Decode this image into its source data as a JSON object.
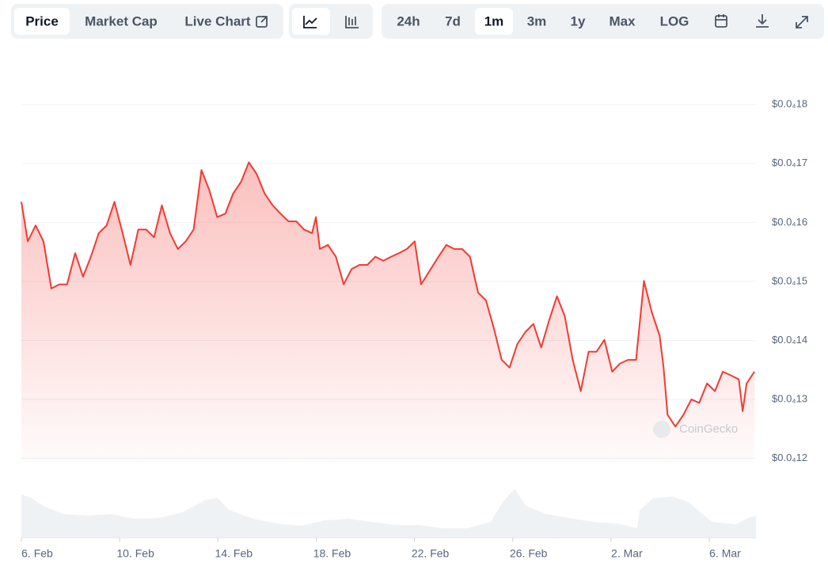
{
  "toolbar": {
    "tabs": [
      "Price",
      "Market Cap",
      "Live Chart"
    ],
    "ranges": [
      "24h",
      "7d",
      "1m",
      "3m",
      "1y",
      "Max",
      "LOG"
    ]
  },
  "chart_data": {
    "type": "line",
    "watermark": "CoinGecko",
    "color": "#f23a33",
    "grid": true,
    "xlim": [
      0,
      29.9
    ],
    "xticks": [
      {
        "value": 0,
        "label": "6. Feb"
      },
      {
        "value": 4,
        "label": "10. Feb"
      },
      {
        "value": 8,
        "label": "14. Feb"
      },
      {
        "value": 12,
        "label": "18. Feb"
      },
      {
        "value": 16,
        "label": "22. Feb"
      },
      {
        "value": 20,
        "label": "26. Feb"
      },
      {
        "value": 24,
        "label": "2. Mar"
      },
      {
        "value": 28,
        "label": "6. Mar"
      }
    ],
    "ylim": [
      1.17e-05,
      1.87e-05
    ],
    "yticks": [
      {
        "value": 1.2e-05,
        "label": "$0.0₄12"
      },
      {
        "value": 1.3e-05,
        "label": "$0.0₄13"
      },
      {
        "value": 1.4e-05,
        "label": "$0.0₄14"
      },
      {
        "value": 1.5e-05,
        "label": "$0.0₄15"
      },
      {
        "value": 1.6e-05,
        "label": "$0.0₄16"
      },
      {
        "value": 1.7e-05,
        "label": "$0.0₄17"
      },
      {
        "value": 1.8e-05,
        "label": "$0.0₄18"
      }
    ],
    "x": [
      0,
      0.26,
      0.58,
      0.9,
      1.22,
      1.54,
      1.86,
      2.19,
      2.51,
      2.83,
      3.15,
      3.47,
      3.79,
      4.12,
      4.44,
      4.76,
      5.08,
      5.4,
      5.72,
      6.05,
      6.37,
      6.69,
      7.01,
      7.33,
      7.65,
      7.97,
      8.3,
      8.62,
      8.94,
      9.26,
      9.58,
      9.9,
      10.23,
      10.55,
      10.87,
      11.19,
      11.51,
      11.83,
      11.99,
      12.15,
      12.48,
      12.8,
      13.12,
      13.44,
      13.76,
      14.08,
      14.41,
      14.73,
      15.05,
      15.37,
      15.69,
      16.01,
      16.27,
      16.66,
      16.98,
      17.3,
      17.62,
      17.94,
      18.26,
      18.59,
      18.91,
      19.23,
      19.55,
      19.87,
      20.19,
      20.51,
      20.84,
      21.16,
      21.48,
      21.8,
      22.12,
      22.44,
      22.77,
      23.09,
      23.41,
      23.73,
      24.05,
      24.37,
      24.69,
      25.02,
      25.34,
      25.66,
      25.98,
      26.14,
      26.3,
      26.62,
      26.95,
      27.27,
      27.59,
      27.91,
      28.23,
      28.55,
      28.87,
      29.2,
      29.36,
      29.52,
      29.84
    ],
    "values": [
      1.635e-05,
      1.568e-05,
      1.595e-05,
      1.568e-05,
      1.488e-05,
      1.495e-05,
      1.495e-05,
      1.548e-05,
      1.508e-05,
      1.542e-05,
      1.582e-05,
      1.595e-05,
      1.635e-05,
      1.582e-05,
      1.528e-05,
      1.588e-05,
      1.588e-05,
      1.575e-05,
      1.629e-05,
      1.582e-05,
      1.555e-05,
      1.568e-05,
      1.588e-05,
      1.689e-05,
      1.655e-05,
      1.609e-05,
      1.615e-05,
      1.649e-05,
      1.669e-05,
      1.702e-05,
      1.682e-05,
      1.649e-05,
      1.629e-05,
      1.615e-05,
      1.602e-05,
      1.602e-05,
      1.588e-05,
      1.582e-05,
      1.609e-05,
      1.555e-05,
      1.562e-05,
      1.542e-05,
      1.495e-05,
      1.521e-05,
      1.528e-05,
      1.528e-05,
      1.542e-05,
      1.535e-05,
      1.542e-05,
      1.548e-05,
      1.555e-05,
      1.568e-05,
      1.495e-05,
      1.521e-05,
      1.542e-05,
      1.562e-05,
      1.555e-05,
      1.555e-05,
      1.542e-05,
      1.481e-05,
      1.468e-05,
      1.421e-05,
      1.367e-05,
      1.354e-05,
      1.394e-05,
      1.414e-05,
      1.428e-05,
      1.388e-05,
      1.434e-05,
      1.475e-05,
      1.441e-05,
      1.367e-05,
      1.314e-05,
      1.381e-05,
      1.381e-05,
      1.401e-05,
      1.347e-05,
      1.361e-05,
      1.367e-05,
      1.367e-05,
      1.501e-05,
      1.448e-05,
      1.408e-05,
      1.354e-05,
      1.274e-05,
      1.254e-05,
      1.274e-05,
      1.3e-05,
      1.294e-05,
      1.327e-05,
      1.314e-05,
      1.347e-05,
      1.341e-05,
      1.334e-05,
      1.28e-05,
      1.327e-05,
      1.347e-05
    ]
  }
}
